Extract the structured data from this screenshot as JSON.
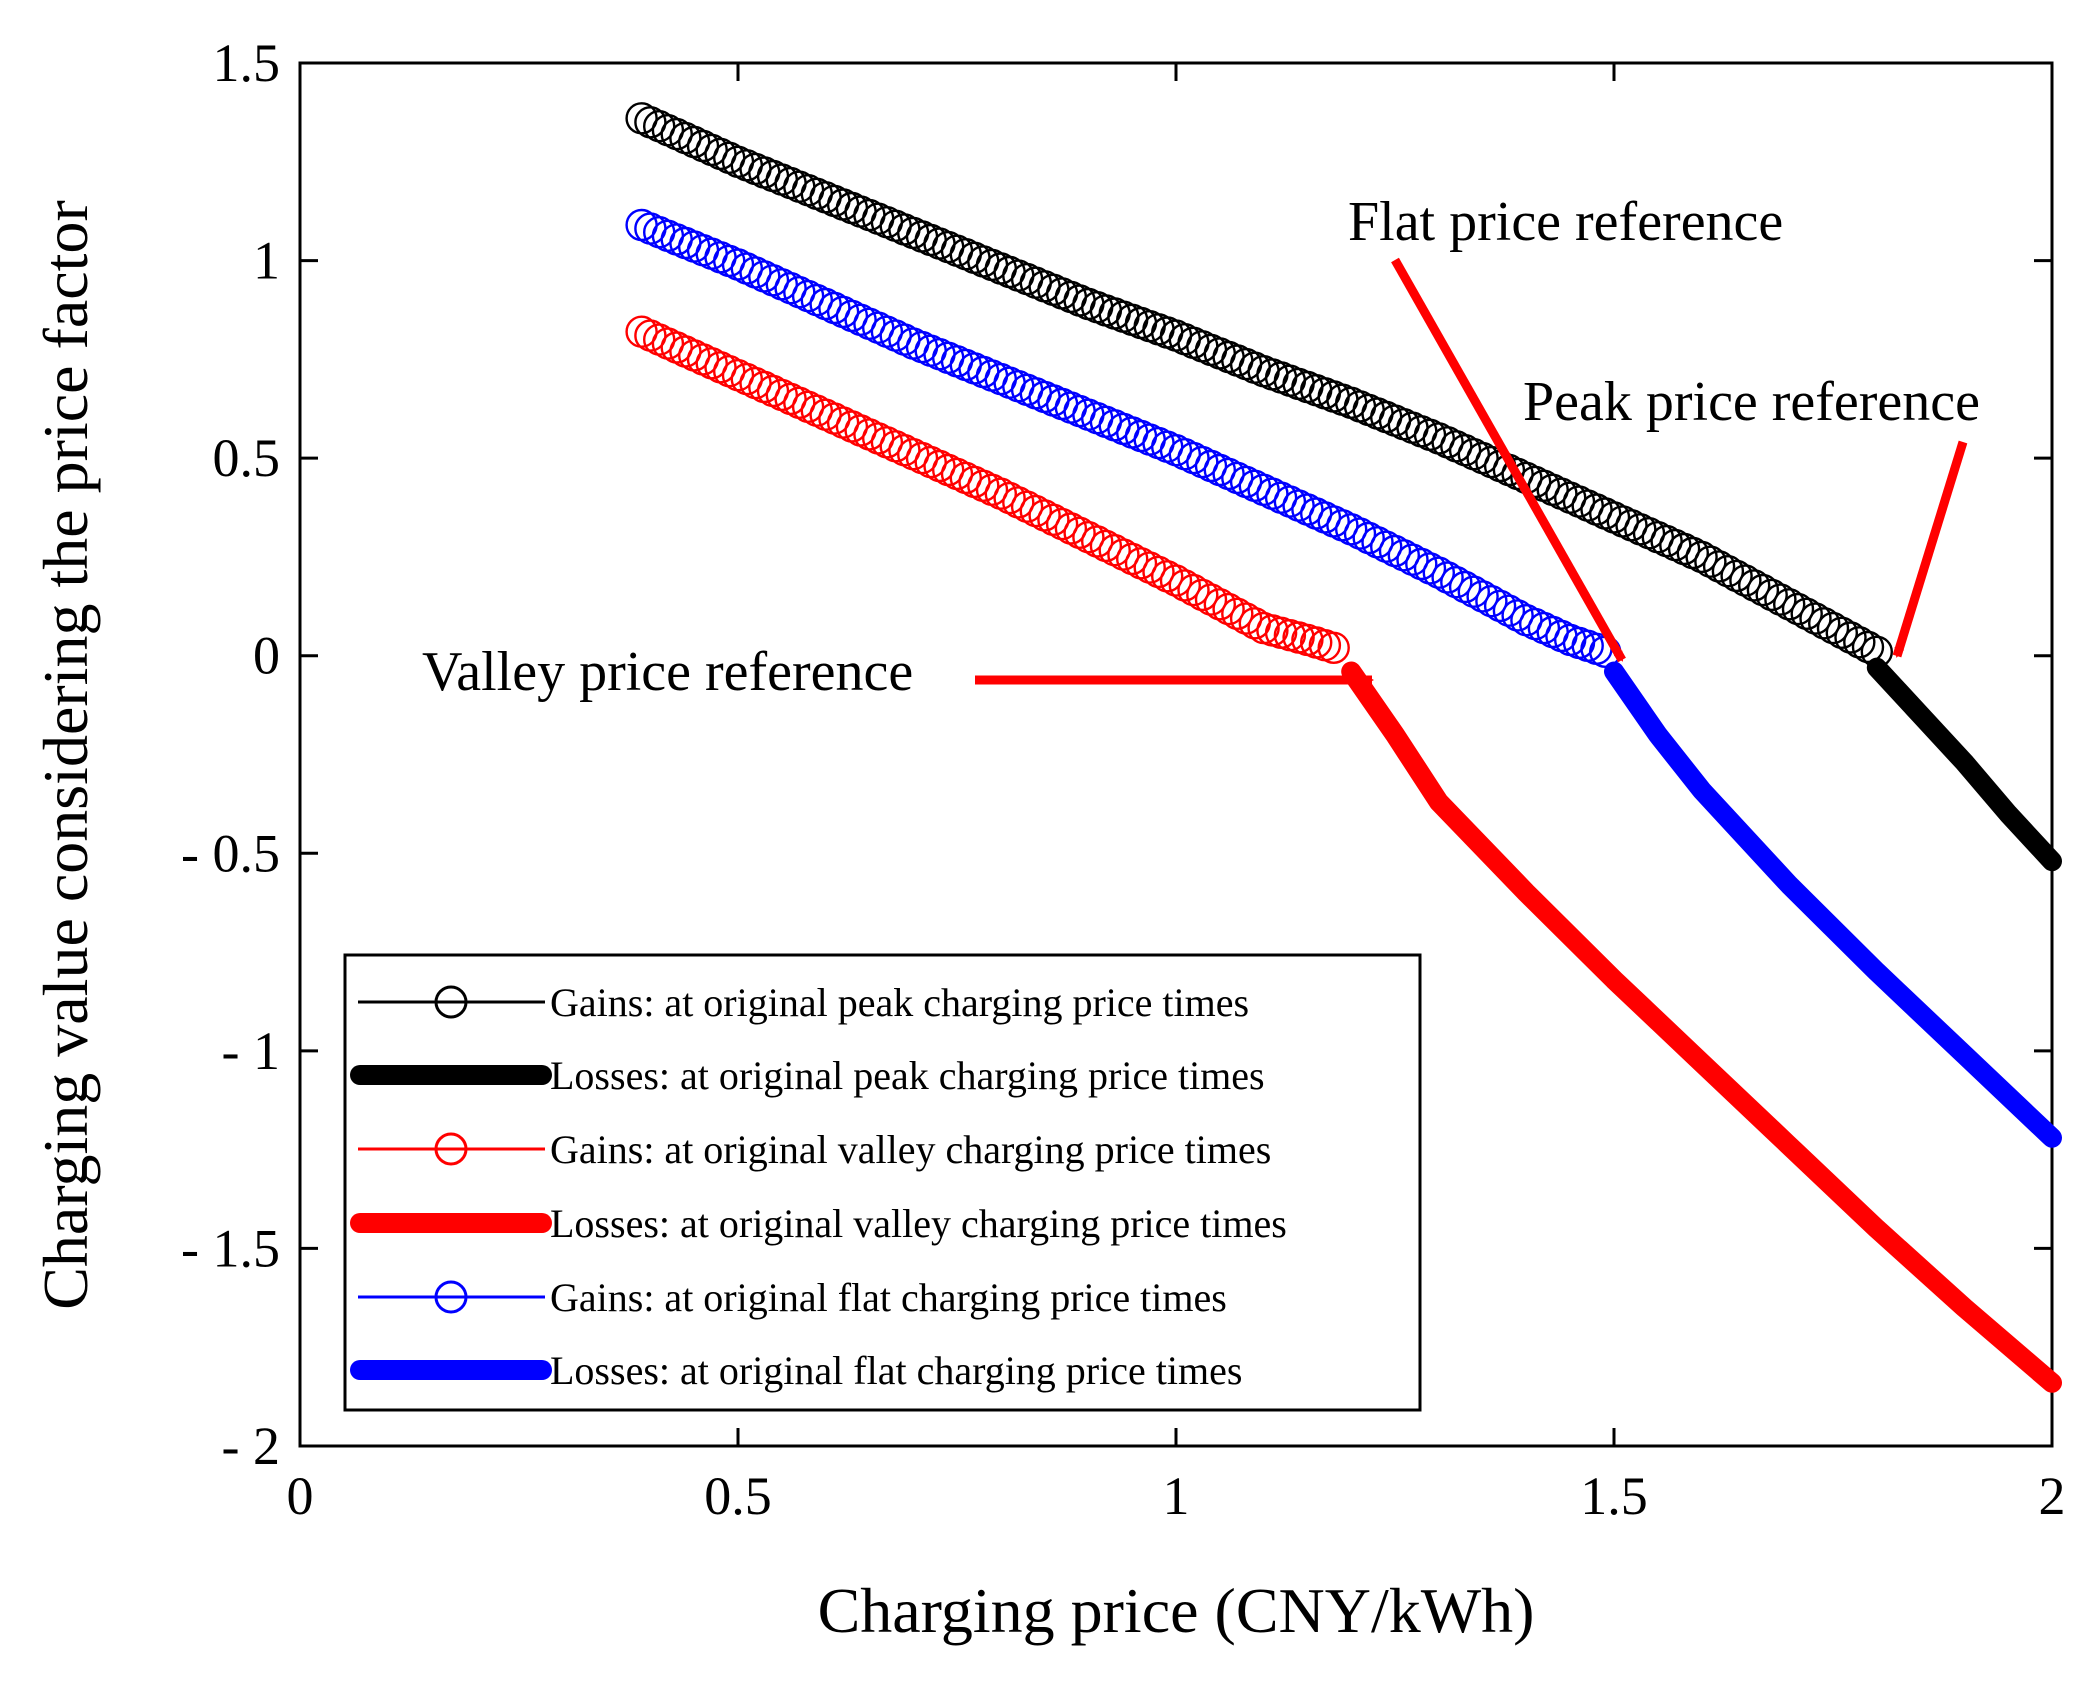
{
  "chart_data": {
    "type": "line",
    "title": "",
    "xlabel": "Charging price (CNY/kWh)",
    "ylabel": "Charging value considering the price factor",
    "xlim": [
      0,
      2
    ],
    "ylim": [
      -2,
      1.5
    ],
    "xticks": [
      0,
      0.5,
      1,
      1.5,
      2
    ],
    "xtick_labels": [
      "0",
      "0.5",
      "1",
      "1.5",
      "2"
    ],
    "yticks": [
      1.5,
      1,
      0.5,
      0,
      -0.5,
      -1,
      -1.5,
      -2
    ],
    "ytick_labels": [
      "1.5",
      "1",
      "0.5",
      "0",
      "- 0.5",
      "- 1",
      "- 1.5",
      "- 2"
    ],
    "grid": false,
    "legend_position": "bottom-left",
    "series": [
      {
        "name": "Gains: at original peak charging price times",
        "color": "#000000",
        "style": "circles",
        "x": [
          0.39,
          0.5,
          0.6,
          0.7,
          0.8,
          0.9,
          1.0,
          1.1,
          1.2,
          1.3,
          1.4,
          1.5,
          1.6,
          1.7,
          1.8
        ],
        "y": [
          1.36,
          1.25,
          1.16,
          1.07,
          0.98,
          0.89,
          0.81,
          0.72,
          0.64,
          0.55,
          0.45,
          0.35,
          0.25,
          0.13,
          0.01
        ]
      },
      {
        "name": "Losses: at original peak charging price times",
        "color": "#000000",
        "style": "thick",
        "x": [
          1.8,
          1.85,
          1.9,
          1.95,
          2.0
        ],
        "y": [
          -0.03,
          -0.15,
          -0.27,
          -0.4,
          -0.52
        ]
      },
      {
        "name": "Gains: at original valley charging price times",
        "color": "#ff0000",
        "style": "circles",
        "x": [
          0.39,
          0.5,
          0.6,
          0.7,
          0.8,
          0.9,
          1.0,
          1.1,
          1.15,
          1.18
        ],
        "y": [
          0.82,
          0.71,
          0.61,
          0.51,
          0.41,
          0.3,
          0.19,
          0.07,
          0.04,
          0.02
        ]
      },
      {
        "name": "Losses: at original valley charging price times",
        "color": "#ff0000",
        "style": "thick",
        "x": [
          1.2,
          1.25,
          1.3,
          1.4,
          1.5,
          1.6,
          1.7,
          1.8,
          1.9,
          2.0
        ],
        "y": [
          -0.04,
          -0.2,
          -0.37,
          -0.6,
          -0.82,
          -1.03,
          -1.24,
          -1.45,
          -1.65,
          -1.84
        ]
      },
      {
        "name": "Gains: at original flat charging price times",
        "color": "#0000ff",
        "style": "circles",
        "x": [
          0.39,
          0.5,
          0.6,
          0.7,
          0.8,
          0.9,
          1.0,
          1.1,
          1.2,
          1.3,
          1.4,
          1.45,
          1.49
        ],
        "y": [
          1.09,
          0.99,
          0.89,
          0.79,
          0.7,
          0.61,
          0.52,
          0.42,
          0.32,
          0.21,
          0.09,
          0.04,
          0.01
        ]
      },
      {
        "name": "Losses: at original flat charging price times",
        "color": "#0000ff",
        "style": "thick",
        "x": [
          1.5,
          1.55,
          1.6,
          1.7,
          1.8,
          1.9,
          2.0
        ],
        "y": [
          -0.04,
          -0.2,
          -0.34,
          -0.58,
          -0.8,
          -1.01,
          -1.22
        ]
      }
    ],
    "annotations": [
      {
        "text": "Valley price reference",
        "target": [
          1.2,
          -0.04
        ]
      },
      {
        "text": "Flat price reference",
        "target": [
          1.51,
          -0.01
        ]
      },
      {
        "text": "Peak price reference",
        "target": [
          1.81,
          0.0
        ]
      }
    ]
  }
}
